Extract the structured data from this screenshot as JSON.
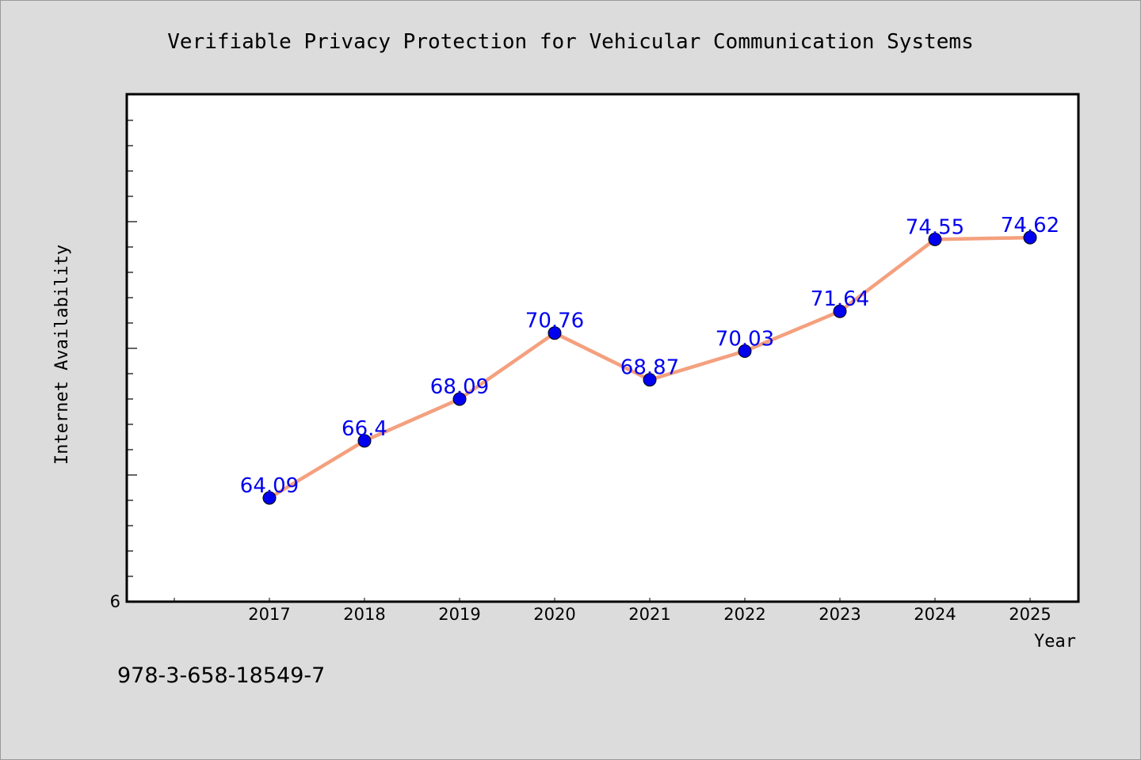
{
  "chart_data": {
    "type": "line",
    "title": "Verifiable Privacy Protection for Vehicular Communication Systems",
    "xlabel": "Year",
    "ylabel": "Internet Availability",
    "categories": [
      "2017",
      "2018",
      "2019",
      "2020",
      "2021",
      "2022",
      "2023",
      "2024",
      "2025"
    ],
    "series": [
      {
        "values": [
          64.09,
          66.4,
          68.09,
          70.76,
          68.87,
          70.03,
          71.64,
          74.55,
          74.62
        ],
        "data_labels": [
          "64.09",
          "66.4",
          "68.09",
          "70.76",
          "68.87",
          "70.03",
          "71.64",
          "74.55",
          "74.62"
        ]
      }
    ],
    "y_tick_label": "6",
    "grid": false,
    "colors": {
      "line": "#f4a07e",
      "marker": "#0000ee",
      "data_label": "#0000ee",
      "plot_background": "#ffffff",
      "page_background": "#dcdcdc"
    }
  },
  "footer": {
    "isbn": "978-3-658-18549-7"
  }
}
